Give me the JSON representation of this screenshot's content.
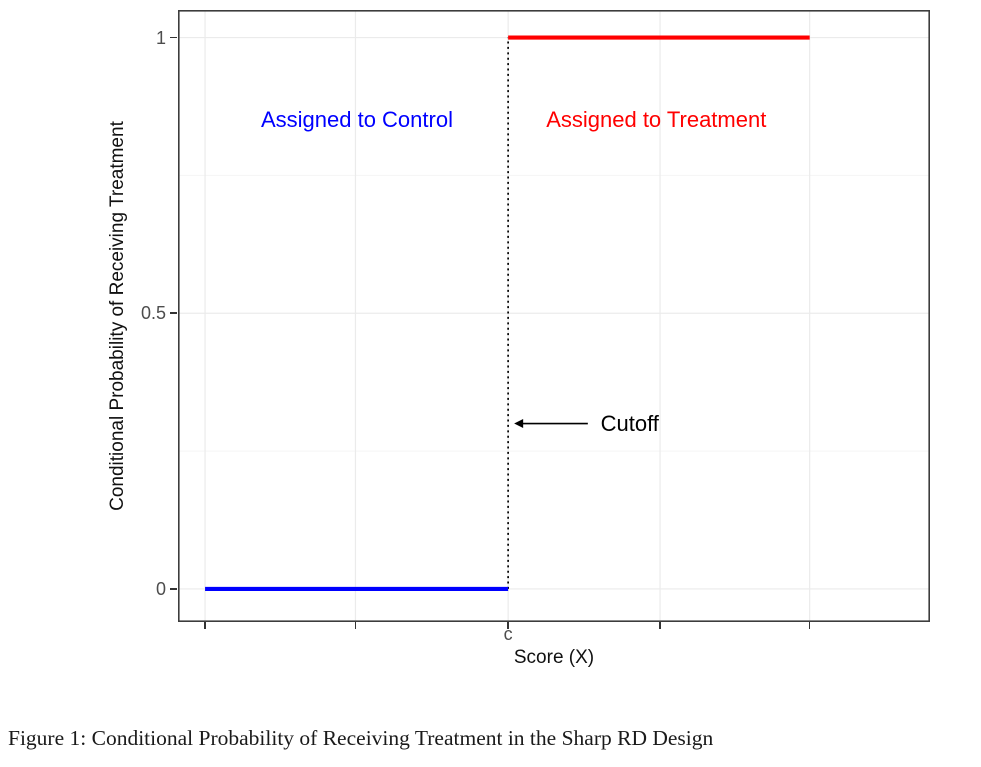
{
  "caption": "Figure 1: Conditional Probability of Receiving Treatment in the Sharp RD Design",
  "chart_data": {
    "type": "line",
    "title": "",
    "xlabel": "Score (X)",
    "ylabel": "Conditional Probability of Receiving Treatment",
    "xlim": [
      0,
      10
    ],
    "ylim": [
      0,
      1
    ],
    "ylim_padded": [
      -0.06,
      1.05
    ],
    "grid": {
      "on": true,
      "major_color": "#ebebeb",
      "minor_color": "#f5f5f5",
      "y_minor": [
        0.25,
        0.75
      ]
    },
    "panel_border_color": "#3d3d3d",
    "y_ticks": [
      {
        "value": 0,
        "label": "0"
      },
      {
        "value": 0.5,
        "label": "0.5"
      },
      {
        "value": 1,
        "label": "1"
      }
    ],
    "x_ticks": [
      {
        "value": 0.36,
        "label": ""
      },
      {
        "value": 2.36,
        "label": ""
      },
      {
        "value": 4.39,
        "label": "c"
      },
      {
        "value": 6.41,
        "label": ""
      },
      {
        "value": 8.4,
        "label": ""
      }
    ],
    "series": [
      {
        "name": "Assigned to Control",
        "color": "#0000ff",
        "y_level": 0,
        "points": [
          [
            0.36,
            0
          ],
          [
            4.39,
            0
          ]
        ]
      },
      {
        "name": "Assigned to Treatment",
        "color": "#ff0000",
        "y_level": 1,
        "points": [
          [
            4.39,
            1
          ],
          [
            8.4,
            1
          ]
        ]
      }
    ],
    "cutoff_line": {
      "x": 4.39,
      "style": "dotted",
      "color": "#000000",
      "y_from": 0,
      "y_to": 1
    },
    "annotations": [
      {
        "id": "control-label",
        "text": "Assigned to Control",
        "color": "#0000ff",
        "x": 2.38,
        "y": 0.85
      },
      {
        "id": "treatment-label",
        "text": "Assigned to Treatment",
        "color": "#ff0000",
        "x": 6.36,
        "y": 0.85
      },
      {
        "id": "cutoff-label",
        "text": "Cutoff",
        "color": "#000000",
        "x": 5.62,
        "y": 0.3,
        "arrow": {
          "from_x": 5.45,
          "to_x": 4.47
        }
      }
    ]
  }
}
